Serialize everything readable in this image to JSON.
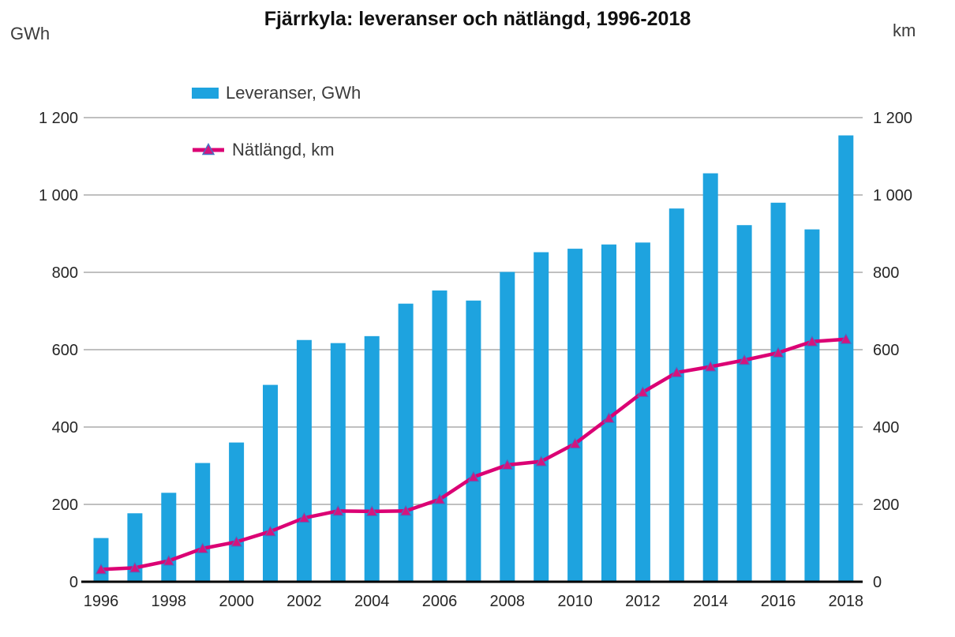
{
  "chart_data": {
    "type": "combo-bar-line",
    "title": "Fjärrkyla: leveranser och nätlängd, 1996-2018",
    "left_axis_unit": "GWh",
    "right_axis_unit": "km",
    "categories": [
      "1996",
      "1997",
      "1998",
      "1999",
      "2000",
      "2001",
      "2002",
      "2003",
      "2004",
      "2005",
      "2006",
      "2007",
      "2008",
      "2009",
      "2010",
      "2011",
      "2012",
      "2013",
      "2014",
      "2015",
      "2016",
      "2017",
      "2018"
    ],
    "x_tick_labels_shown": [
      "1996",
      "1998",
      "2000",
      "2002",
      "2004",
      "2006",
      "2008",
      "2010",
      "2012",
      "2014",
      "2016",
      "2018"
    ],
    "y_ticks": [
      0,
      200,
      400,
      600,
      800,
      1000,
      1200
    ],
    "y_tick_labels": [
      "0",
      "200",
      "400",
      "600",
      "800",
      "1 000",
      "1 200"
    ],
    "left_ylim": [
      0,
      1200
    ],
    "right_ylim": [
      0,
      1200
    ],
    "grid": "horizontal",
    "legend_position": "inside-top-left",
    "series": [
      {
        "name": "Leveranser, GWh",
        "type": "bar",
        "axis": "left",
        "color": "#1ea3df",
        "values": [
          113,
          177,
          230,
          307,
          360,
          509,
          625,
          617,
          635,
          719,
          753,
          727,
          801,
          852,
          861,
          872,
          877,
          965,
          1056,
          922,
          980,
          911,
          1154
        ]
      },
      {
        "name": "Nätlängd, km",
        "type": "line",
        "axis": "right",
        "color": "#db0074",
        "marker": "triangle",
        "marker_fill": "#d4157e",
        "marker_stroke": "#4472c4",
        "values": [
          32,
          36,
          54,
          86,
          103,
          130,
          165,
          183,
          182,
          183,
          213,
          271,
          302,
          311,
          357,
          423,
          490,
          541,
          556,
          573,
          592,
          621,
          627
        ]
      }
    ],
    "colors": {
      "bar": "#1ea3df",
      "line": "#db0074",
      "gridline": "#ababab",
      "axis_line": "#000000",
      "tick_text": "#262626",
      "title_text": "#111111",
      "label_text": "#3b3b3b"
    }
  }
}
